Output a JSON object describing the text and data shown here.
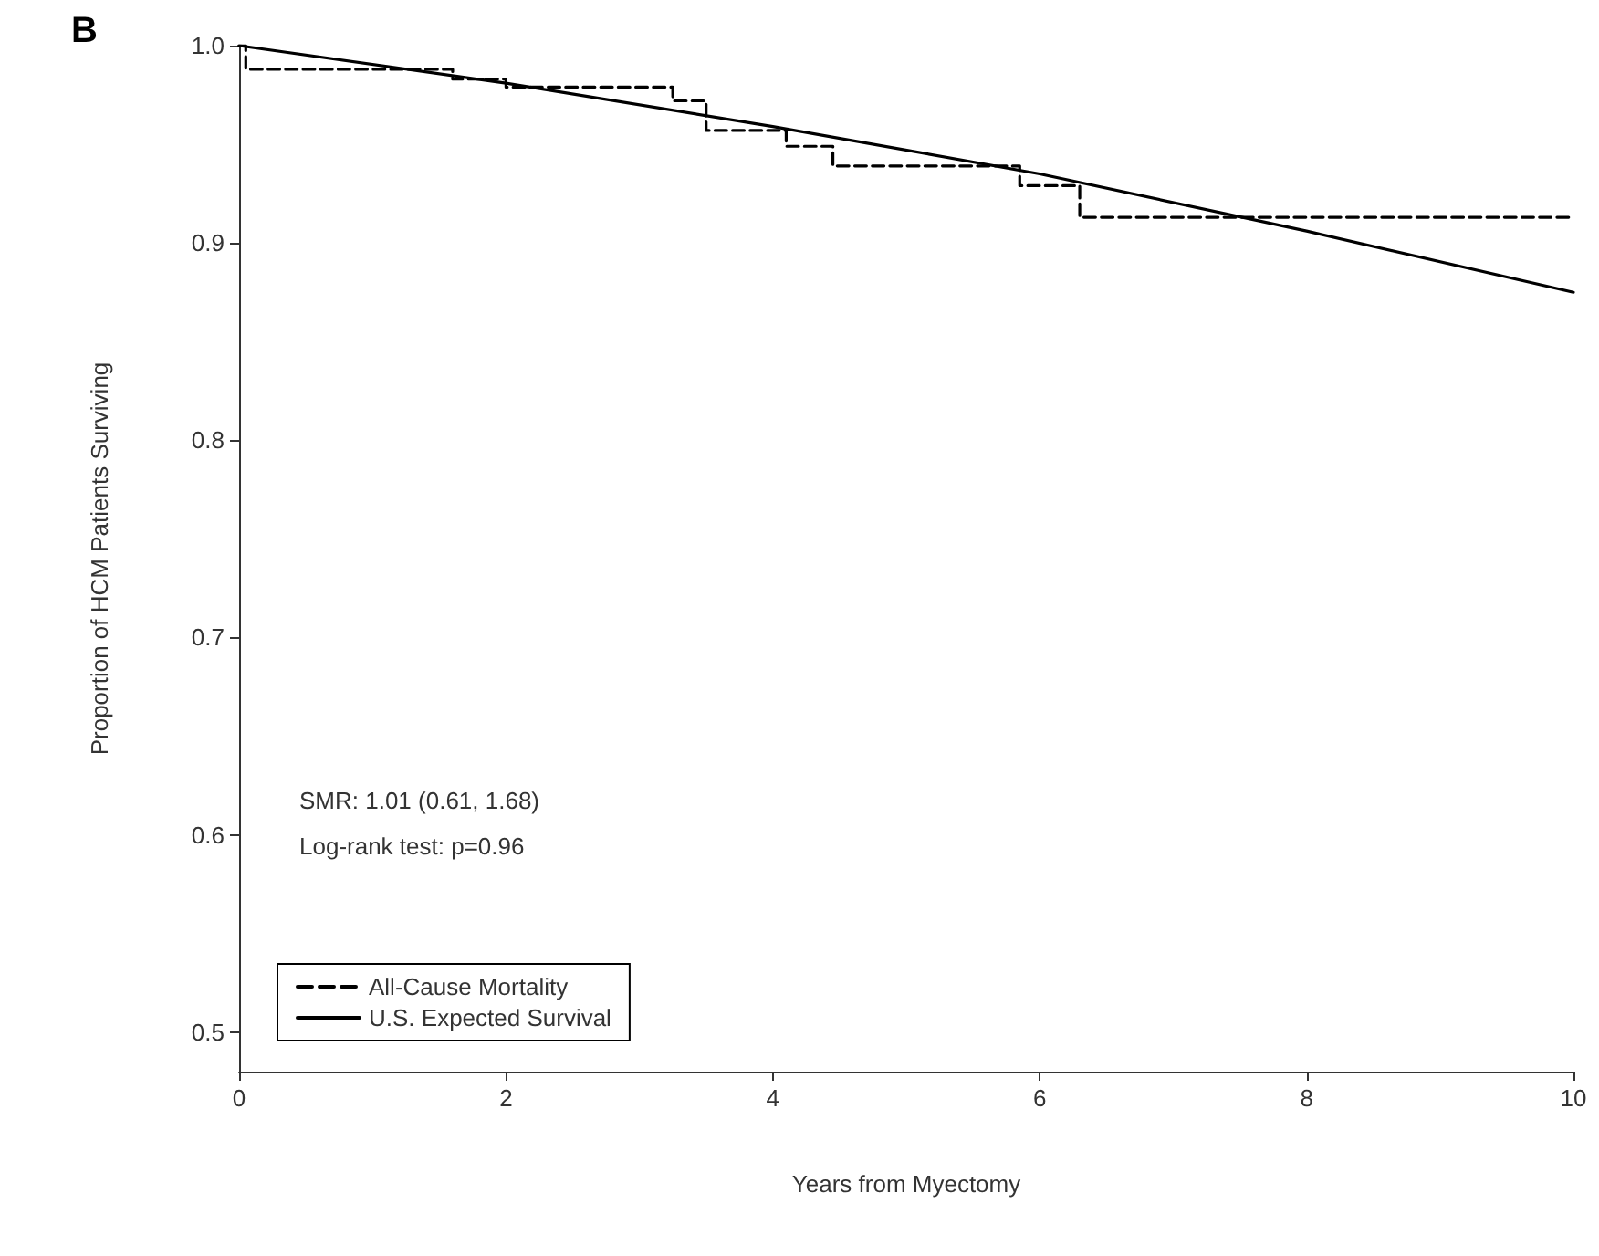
{
  "chart_data": {
    "type": "line",
    "title": "B",
    "xlabel": "Years from Myectomy",
    "ylabel": "Proportion of HCM Patients Surviving",
    "annotations": [
      "SMR: 1.01 (0.61, 1.68)",
      "Log-rank test: p=0.96"
    ],
    "series": [
      {
        "name": "All-Cause Mortality",
        "type": "step",
        "color": "#000000",
        "line_style": "dashed",
        "x": [
          0,
          0.05,
          1.6,
          2.0,
          3.25,
          3.5,
          4.1,
          4.45,
          5.85,
          6.3,
          10
        ],
        "values": [
          1.0,
          0.988,
          0.983,
          0.979,
          0.972,
          0.957,
          0.949,
          0.939,
          0.929,
          0.913,
          0.913
        ]
      },
      {
        "name": "U.S. Expected Survival",
        "type": "line",
        "color": "#000000",
        "line_style": "solid",
        "x": [
          0,
          2,
          4,
          6,
          8,
          10
        ],
        "values": [
          1.0,
          0.981,
          0.959,
          0.935,
          0.906,
          0.875
        ]
      }
    ],
    "xlim": [
      0,
      10
    ],
    "xticks": [
      0,
      2,
      4,
      6,
      8,
      10
    ],
    "ylim": [
      0.48,
      1.0
    ],
    "yticks": [
      {
        "value": 0.5,
        "label": "0.5"
      },
      {
        "value": 0.6,
        "label": "0.6"
      },
      {
        "value": 0.7,
        "label": "0.7"
      },
      {
        "value": 0.8,
        "label": "0.8"
      },
      {
        "value": 0.9,
        "label": "0.9"
      },
      {
        "value": 1.0,
        "label": "1.0"
      }
    ],
    "grid": false,
    "legend": "bottom left",
    "marker": "none"
  }
}
